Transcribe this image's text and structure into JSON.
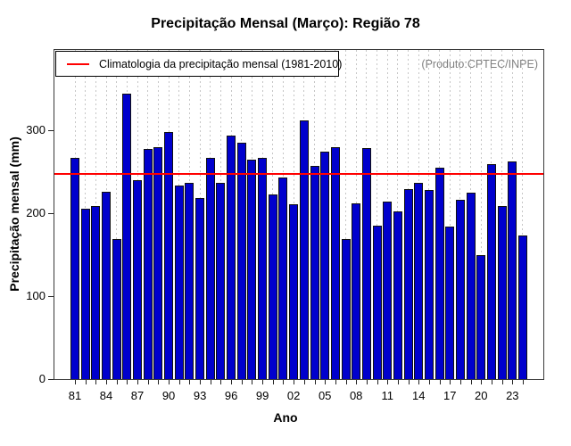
{
  "chart_data": {
    "type": "bar",
    "title": "Precipitação Mensal (Março): Região 78",
    "xlabel": "Ano",
    "ylabel": "Precipitação mensal (mm)",
    "annotation": "(Produto:CPTEC/INPE)",
    "annotation_color": "#808080",
    "legend": {
      "label": "Climatologia da precipitação mensal (1981-2010)",
      "line_color": "#ff0000",
      "position": "top-left"
    },
    "climatology_value": 247,
    "years": [
      1981,
      1982,
      1983,
      1984,
      1985,
      1986,
      1987,
      1988,
      1989,
      1990,
      1991,
      1992,
      1993,
      1994,
      1995,
      1996,
      1997,
      1998,
      1999,
      2000,
      2001,
      2002,
      2003,
      2004,
      2005,
      2006,
      2007,
      2008,
      2009,
      2010,
      2011,
      2012,
      2013,
      2014,
      2015,
      2016,
      2017,
      2018,
      2019,
      2020,
      2021,
      2022,
      2023,
      2024
    ],
    "values": [
      266,
      204,
      207,
      225,
      168,
      343,
      239,
      276,
      278,
      297,
      232,
      236,
      217,
      266,
      236,
      292,
      284,
      263,
      266,
      221,
      242,
      210,
      311,
      256,
      273,
      278,
      168,
      211,
      277,
      184,
      213,
      201,
      228,
      235,
      227,
      254,
      183,
      215,
      224,
      148,
      258,
      207,
      261,
      172
    ],
    "x_tick_labels": [
      "81",
      "84",
      "87",
      "90",
      "93",
      "96",
      "99",
      "02",
      "05",
      "08",
      "11",
      "14",
      "17",
      "20",
      "23"
    ],
    "x_tick_step": 3,
    "y_ticks": [
      0,
      100,
      200,
      300
    ],
    "ylim": [
      0,
      399
    ],
    "bar_color": "#0000cd",
    "bar_border_color": "#101010",
    "grid": "vertical dotted line at every year"
  }
}
